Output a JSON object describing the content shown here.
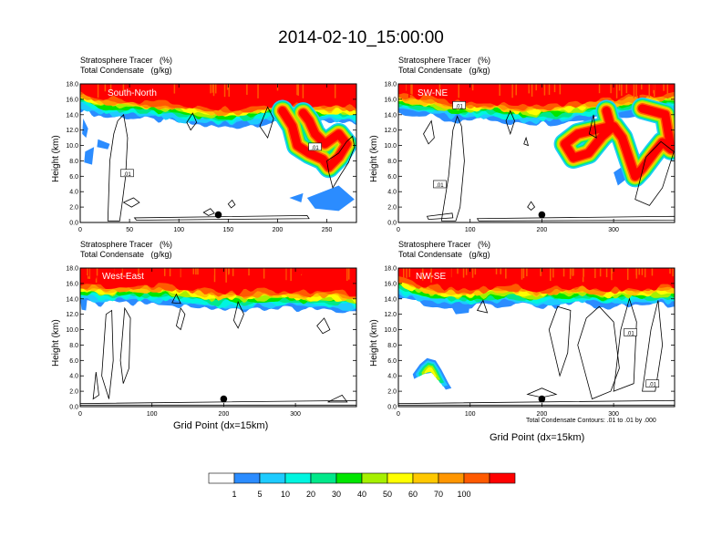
{
  "title": "2014-02-10_15:00:00",
  "contour_note": "Total Condensate Contours: .01 to .01 by .000",
  "chart_data": [
    {
      "type": "heatmap",
      "panel_label": "South-North",
      "title_lines": [
        "Stratosphere Tracer   (%)",
        "Total Condensate   (g/kg)"
      ],
      "ylabel": "Height (km)",
      "xlabel": "",
      "xlim": [
        0,
        280
      ],
      "ylim": [
        0,
        18
      ],
      "xticks": [
        0,
        50,
        100,
        150,
        200,
        250
      ],
      "yticks": [
        0.0,
        2.0,
        4.0,
        6.0,
        8.0,
        10.0,
        12.0,
        14.0,
        16.0,
        18.0
      ],
      "contour_labels": [
        ".01",
        ".01"
      ],
      "marker_x": 140
    },
    {
      "type": "heatmap",
      "panel_label": "SW-NE",
      "title_lines": [
        "Stratosphere Tracer   (%)",
        "Total Condensate   (g/kg)"
      ],
      "ylabel": "Height (km)",
      "xlabel": "",
      "xlim": [
        0,
        385
      ],
      "ylim": [
        0,
        18
      ],
      "xticks": [
        0,
        100,
        200,
        300
      ],
      "yticks": [
        0.0,
        2.0,
        4.0,
        6.0,
        8.0,
        10.0,
        12.0,
        14.0,
        16.0,
        18.0
      ],
      "contour_labels": [
        ".01",
        ".01"
      ],
      "marker_x": 200
    },
    {
      "type": "heatmap",
      "panel_label": "West-East",
      "title_lines": [
        "Stratosphere Tracer   (%)",
        "Total Condensate   (g/kg)"
      ],
      "ylabel": "Height (km)",
      "xlabel": "Grid Point (dx=15km)",
      "xlim": [
        0,
        385
      ],
      "ylim": [
        0,
        18
      ],
      "xticks": [
        0,
        100,
        200,
        300
      ],
      "yticks": [
        0.0,
        2.0,
        4.0,
        6.0,
        8.0,
        10.0,
        12.0,
        14.0,
        16.0,
        18.0
      ],
      "contour_labels": [],
      "marker_x": 200
    },
    {
      "type": "heatmap",
      "panel_label": "NW-SE",
      "title_lines": [
        "Stratosphere Tracer   (%)",
        "Total Condensate   (g/kg)"
      ],
      "ylabel": "Height (km)",
      "xlabel": "Grid Point (dx=15km)",
      "xlim": [
        0,
        385
      ],
      "ylim": [
        0,
        18
      ],
      "xticks": [
        0,
        100,
        200,
        300
      ],
      "yticks": [
        0.0,
        2.0,
        4.0,
        6.0,
        8.0,
        10.0,
        12.0,
        14.0,
        16.0,
        18.0
      ],
      "contour_labels": [
        ".01",
        ".01"
      ],
      "marker_x": 200
    }
  ],
  "colorbar": {
    "labels": [
      "1",
      "5",
      "10",
      "20",
      "30",
      "40",
      "50",
      "60",
      "70",
      "100"
    ],
    "colors": [
      "#ffffff",
      "#2b8cff",
      "#1ecbff",
      "#00f5e0",
      "#00e88a",
      "#00e600",
      "#a6f000",
      "#ffff00",
      "#ffc800",
      "#ff9600",
      "#ff5a00",
      "#ff0000"
    ]
  }
}
